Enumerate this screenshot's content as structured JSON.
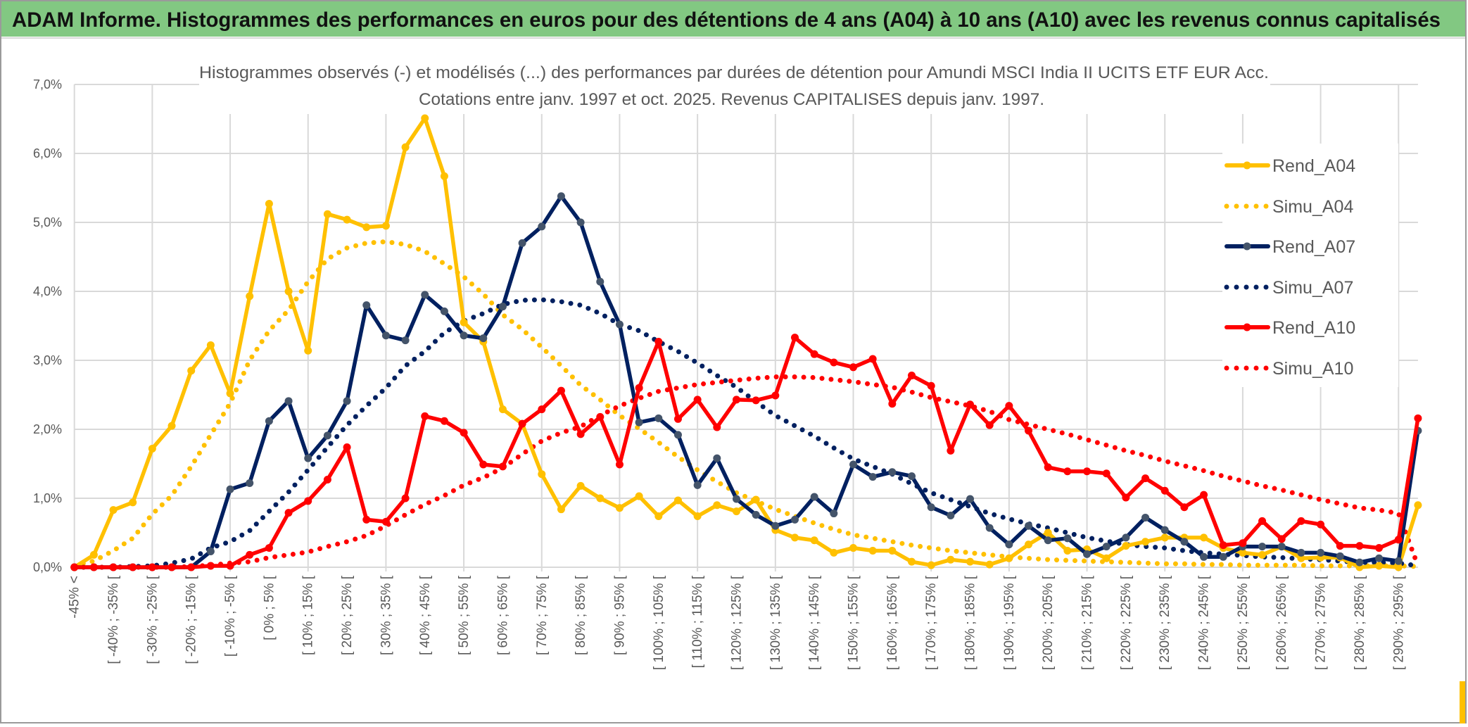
{
  "header": {
    "title": "ADAM Informe. Histogrammes des performances en euros pour des détentions de 4 ans (A04) à 10 ans (A10) avec les revenus connus capitalisés",
    "background_color": "#82C882"
  },
  "chart_data": {
    "type": "line",
    "title": "Histogrammes observés (-) et modélisés (...) des performances par durées de détention pour Amundi MSCI India II UCITS ETF EUR Acc.",
    "subtitle": "Cotations entre janv. 1997 et oct. 2025. Revenus CAPITALISES depuis janv. 1997.",
    "xlabel": "",
    "ylabel": "",
    "ylim": [
      0,
      7
    ],
    "y_unit": "%",
    "y_tick_labels": [
      "0,0%",
      "1,0%",
      "2,0%",
      "3,0%",
      "4,0%",
      "5,0%",
      "6,0%",
      "7,0%"
    ],
    "grid": true,
    "legend_position": "right",
    "categories": [
      "-45% <",
      "[ -45% ; -40% [",
      "[ -40% ; -35% [",
      "[ -35% ; -30% [",
      "[ -30% ; -25% [",
      "[ -25% ; -20% [",
      "[ -20% ; -15% [",
      "[ -15% ; -10% [",
      "[ -10% ; -5% [",
      "[ -5% ; 0% [",
      "[ 0% ; 5% [",
      "[ 5% ; 10% [",
      "[ 10% ; 15% [",
      "[ 15% ; 20% [",
      "[ 20% ; 25% [",
      "[ 25% ; 30% [",
      "[ 30% ; 35% [",
      "[ 35% ; 40% [",
      "[ 40% ; 45% [",
      "[ 45% ; 50% [",
      "[ 50% ; 55% [",
      "[ 55% ; 60% [",
      "[ 60% ; 65% [",
      "[ 65% ; 70% [",
      "[ 70% ; 75% [",
      "[ 75% ; 80% [",
      "[ 80% ; 85% [",
      "[ 85% ; 90% [",
      "[ 90% ; 95% [",
      "[ 95% ; 100% [",
      "[ 100% ; 105% [",
      "[ 105% ; 110% [",
      "[ 110% ; 115% [",
      "[ 115% ; 120% [",
      "[ 120% ; 125% [",
      "[ 125% ; 130% [",
      "[ 130% ; 135% [",
      "[ 135% ; 140% [",
      "[ 140% ; 145% [",
      "[ 145% ; 150% [",
      "[ 150% ; 155% [",
      "[ 155% ; 160% [",
      "[ 160% ; 165% [",
      "[ 165% ; 170% [",
      "[ 170% ; 175% [",
      "[ 175% ; 180% [",
      "[ 180% ; 185% [",
      "[ 185% ; 190% [",
      "[ 190% ; 195% [",
      "[ 195% ; 200% [",
      "[ 200% ; 205% [",
      "[ 205% ; 210% [",
      "[ 210% ; 215% [",
      "[ 215% ; 220% [",
      "[ 220% ; 225% [",
      "[ 225% ; 230% [",
      "[ 230% ; 235% [",
      "[ 235% ; 240% [",
      "[ 240% ; 245% [",
      "[ 245% ; 250% [",
      "[ 250% ; 255% [",
      "[ 255% ; 260% [",
      "[ 260% ; 265% [",
      "[ 265% ; 270% [",
      "[ 270% ; 275% [",
      "[ 275% ; 280% [",
      "[ 280% ; 285% [",
      "[ 285% ; 290% [",
      "[ 290% ; 295% [",
      "[ 295% ; 300% ["
    ],
    "series": [
      {
        "name": "Rend_A04",
        "style": "solid-markers",
        "color": "#FFC000",
        "marker_color": "#FFC000",
        "values": [
          0.0,
          0.18,
          0.83,
          0.94,
          1.72,
          2.05,
          2.85,
          3.22,
          2.52,
          3.93,
          5.27,
          4.0,
          3.14,
          5.12,
          5.04,
          4.93,
          4.95,
          6.09,
          6.51,
          5.67,
          3.55,
          3.27,
          2.29,
          2.08,
          1.35,
          0.84,
          1.18,
          1.0,
          0.86,
          1.03,
          0.74,
          0.97,
          0.74,
          0.9,
          0.81,
          0.98,
          0.54,
          0.43,
          0.39,
          0.21,
          0.28,
          0.24,
          0.24,
          0.08,
          0.03,
          0.11,
          0.08,
          0.04,
          0.13,
          0.33,
          0.5,
          0.24,
          0.26,
          0.13,
          0.31,
          0.37,
          0.43,
          0.43,
          0.43,
          0.28,
          0.21,
          0.18,
          0.3,
          0.13,
          0.14,
          0.14,
          0.0,
          0.02,
          0.0,
          0.9
        ]
      },
      {
        "name": "Simu_A04",
        "style": "dotted",
        "color": "#FFC000",
        "values": [
          0.02,
          0.09,
          0.24,
          0.42,
          0.77,
          1.04,
          1.46,
          1.92,
          2.38,
          3.0,
          3.43,
          3.73,
          4.14,
          4.47,
          4.63,
          4.7,
          4.72,
          4.68,
          4.58,
          4.4,
          4.21,
          3.96,
          3.66,
          3.45,
          3.19,
          2.92,
          2.64,
          2.43,
          2.2,
          2.01,
          1.81,
          1.6,
          1.41,
          1.24,
          1.08,
          0.96,
          0.84,
          0.74,
          0.64,
          0.55,
          0.47,
          0.42,
          0.37,
          0.32,
          0.28,
          0.24,
          0.21,
          0.18,
          0.15,
          0.13,
          0.11,
          0.1,
          0.09,
          0.08,
          0.07,
          0.06,
          0.05,
          0.05,
          0.04,
          0.04,
          0.03,
          0.03,
          0.03,
          0.03,
          0.02,
          0.02,
          0.02,
          0.02,
          0.02,
          0.01
        ]
      },
      {
        "name": "Rend_A07",
        "style": "solid-markers",
        "color": "#002060",
        "marker_color": "#44546A",
        "values": [
          0,
          0,
          0,
          0,
          0,
          0,
          0,
          0.23,
          1.13,
          1.22,
          2.12,
          2.41,
          1.58,
          1.91,
          2.41,
          3.8,
          3.36,
          3.29,
          3.95,
          3.71,
          3.36,
          3.32,
          3.78,
          4.7,
          4.94,
          5.38,
          5.0,
          4.14,
          3.52,
          2.1,
          2.16,
          1.92,
          1.19,
          1.58,
          0.99,
          0.76,
          0.6,
          0.69,
          1.02,
          0.78,
          1.49,
          1.31,
          1.38,
          1.32,
          0.87,
          0.75,
          0.99,
          0.57,
          0.33,
          0.6,
          0.39,
          0.42,
          0.19,
          0.3,
          0.43,
          0.72,
          0.54,
          0.37,
          0.15,
          0.15,
          0.3,
          0.3,
          0.3,
          0.21,
          0.21,
          0.16,
          0.07,
          0.13,
          0.09,
          1.98
        ]
      },
      {
        "name": "Simu_A07",
        "style": "dotted",
        "color": "#002060",
        "values": [
          0,
          0,
          0,
          0.01,
          0.02,
          0.06,
          0.12,
          0.28,
          0.37,
          0.53,
          0.81,
          1.09,
          1.41,
          1.74,
          2.06,
          2.34,
          2.6,
          2.92,
          3.13,
          3.4,
          3.57,
          3.68,
          3.81,
          3.87,
          3.88,
          3.85,
          3.8,
          3.68,
          3.52,
          3.43,
          3.27,
          3.13,
          2.96,
          2.78,
          2.61,
          2.4,
          2.2,
          2.05,
          1.9,
          1.73,
          1.57,
          1.46,
          1.35,
          1.21,
          1.08,
          0.98,
          0.88,
          0.78,
          0.7,
          0.63,
          0.57,
          0.5,
          0.43,
          0.38,
          0.33,
          0.3,
          0.28,
          0.24,
          0.21,
          0.19,
          0.17,
          0.15,
          0.14,
          0.12,
          0.11,
          0.09,
          0.07,
          0.07,
          0.06,
          0.02
        ]
      },
      {
        "name": "Rend_A10",
        "style": "solid-markers",
        "color": "#FF0000",
        "marker_color": "#FF0000",
        "values": [
          0,
          0,
          0,
          0,
          0,
          0,
          0,
          0.02,
          0.02,
          0.18,
          0.28,
          0.79,
          0.96,
          1.27,
          1.74,
          0.69,
          0.66,
          1.0,
          2.19,
          2.12,
          1.95,
          1.49,
          1.46,
          2.08,
          2.29,
          2.56,
          1.93,
          2.18,
          1.49,
          2.6,
          3.27,
          2.15,
          2.43,
          2.03,
          2.43,
          2.42,
          2.49,
          3.33,
          3.09,
          2.97,
          2.9,
          3.02,
          2.37,
          2.78,
          2.63,
          1.69,
          2.36,
          2.06,
          2.34,
          1.98,
          1.45,
          1.39,
          1.39,
          1.36,
          1.01,
          1.29,
          1.11,
          0.87,
          1.05,
          0.32,
          0.35,
          0.67,
          0.41,
          0.67,
          0.62,
          0.31,
          0.31,
          0.28,
          0.4,
          2.16
        ]
      },
      {
        "name": "Simu_A10",
        "style": "dotted",
        "color": "#FF0000",
        "values": [
          0,
          0,
          0,
          0,
          0,
          0,
          0.01,
          0.03,
          0.06,
          0.08,
          0.14,
          0.18,
          0.22,
          0.3,
          0.37,
          0.46,
          0.6,
          0.76,
          0.91,
          1.04,
          1.19,
          1.3,
          1.44,
          1.64,
          1.83,
          1.95,
          2.04,
          2.2,
          2.34,
          2.45,
          2.55,
          2.6,
          2.65,
          2.68,
          2.71,
          2.74,
          2.76,
          2.76,
          2.75,
          2.72,
          2.69,
          2.65,
          2.61,
          2.54,
          2.46,
          2.4,
          2.34,
          2.26,
          2.14,
          2.07,
          2.0,
          1.93,
          1.85,
          1.77,
          1.69,
          1.62,
          1.54,
          1.47,
          1.4,
          1.32,
          1.25,
          1.18,
          1.12,
          1.05,
          0.98,
          0.92,
          0.86,
          0.83,
          0.78,
          0.02
        ]
      }
    ]
  }
}
